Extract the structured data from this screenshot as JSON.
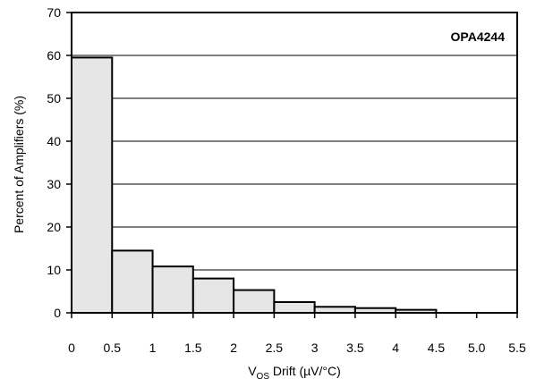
{
  "chart_data": {
    "type": "bar",
    "title": "",
    "annotation": "OPA4244",
    "xlabel_main": "V",
    "xlabel_sub": "OS",
    "xlabel_rest": " Drift (µV/°C)",
    "ylabel": "Percent of Amplifiers (%)",
    "x_ticks": [
      "0",
      "0.5",
      "1",
      "1.5",
      "2",
      "2.5",
      "3",
      "3.5",
      "4",
      "4.5",
      "5.0",
      "5.5"
    ],
    "x_tick_values": [
      0,
      0.5,
      1,
      1.5,
      2,
      2.5,
      3,
      3.5,
      4,
      4.5,
      5.0,
      5.5
    ],
    "xlim": [
      0,
      5.5
    ],
    "y_ticks": [
      "0",
      "10",
      "20",
      "30",
      "40",
      "50",
      "60",
      "70"
    ],
    "y_tick_values": [
      0,
      10,
      20,
      30,
      40,
      50,
      60,
      70
    ],
    "ylim": [
      0,
      70
    ],
    "grid": "horizontal",
    "bin_edges": [
      0,
      0.5,
      1.0,
      1.5,
      2.0,
      2.5,
      3.0,
      3.5,
      4.0,
      4.5
    ],
    "values": [
      59.5,
      14.5,
      10.8,
      8.0,
      5.3,
      2.5,
      1.4,
      1.1,
      0.7
    ],
    "bar_fill": "#e6e6e6",
    "bar_stroke": "#000000"
  }
}
